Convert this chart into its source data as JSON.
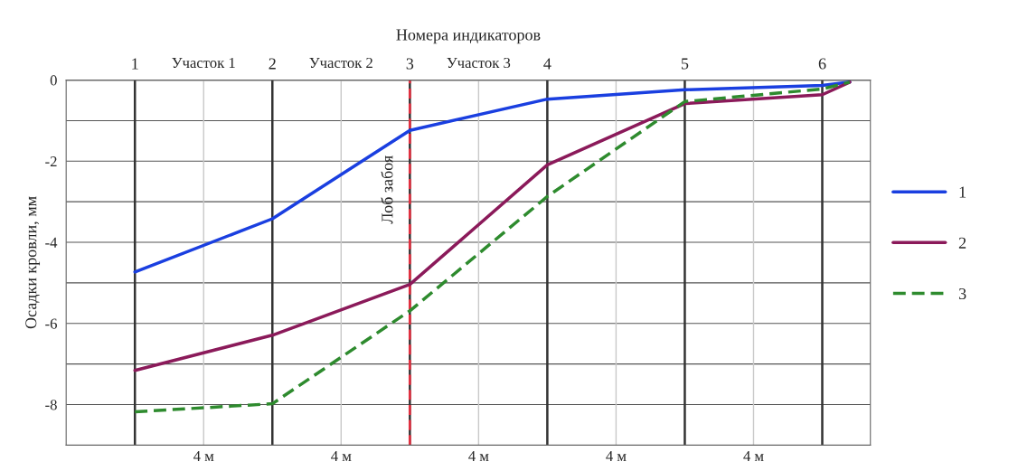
{
  "chart_data": {
    "type": "line",
    "xlabel": "Номера индикаторов",
    "ylabel": "Осадки кровли, мм",
    "x": [
      1,
      2,
      3,
      4,
      5,
      6,
      6.2
    ],
    "series": [
      {
        "name": "1",
        "color": "#1a3fe0",
        "line_style": "solid",
        "values": [
          -4.73,
          -3.42,
          -1.24,
          -0.47,
          -0.24,
          -0.13,
          -0.05
        ]
      },
      {
        "name": "2",
        "color": "#8b1a5a",
        "line_style": "solid",
        "values": [
          -7.16,
          -6.29,
          -5.04,
          -2.09,
          -0.58,
          -0.36,
          -0.05
        ]
      },
      {
        "name": "3",
        "color": "#2e8b2e",
        "line_style": "dashed",
        "values": [
          -8.18,
          -7.98,
          -5.69,
          -2.87,
          -0.53,
          -0.22,
          -0.05
        ]
      }
    ],
    "xlim": [
      0.5,
      6.35
    ],
    "xticks": [
      1,
      2,
      3,
      4,
      5,
      6
    ],
    "ylim": [
      -9,
      0
    ],
    "yticks": [
      0,
      {
        "value": -1,
        "label": null
      },
      -2,
      {
        "value": -3,
        "label": null
      },
      -4,
      {
        "value": -5,
        "label": null
      },
      -6,
      {
        "value": -7,
        "label": null
      },
      -8
    ],
    "ref_lines": [
      {
        "axis": "x",
        "value": 3,
        "label": "Лоб забоя",
        "color": "#e03040",
        "line_style": "dashed"
      }
    ],
    "annotations": [
      "Участок 1",
      "Участок 2",
      "Участок 3",
      "4 м",
      "4 м",
      "4 м",
      "4 м",
      "4 м"
    ],
    "grid": true,
    "legend": "right"
  }
}
